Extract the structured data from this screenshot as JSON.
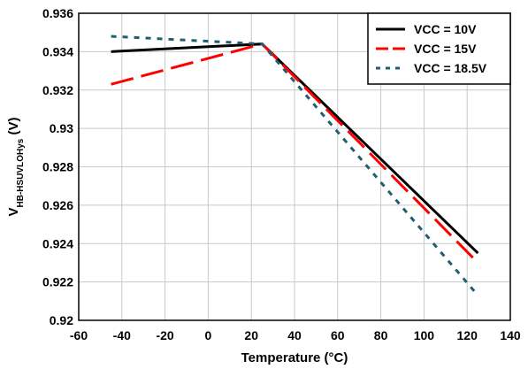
{
  "chart_data": {
    "type": "line",
    "xlabel": "Temperature (°C)",
    "ylabel": {
      "main": "V",
      "sub": "HB-HSUVLOHys",
      "unit": " (V)"
    },
    "xlim": [
      -60,
      140
    ],
    "ylim": [
      0.92,
      0.936
    ],
    "x_ticks": [
      "-60",
      "-40",
      "-20",
      "0",
      "20",
      "40",
      "60",
      "80",
      "100",
      "120",
      "140"
    ],
    "y_ticks": [
      "0.92",
      "0.922",
      "0.924",
      "0.926",
      "0.928",
      "0.93",
      "0.932",
      "0.934",
      "0.936"
    ],
    "grid": true,
    "legend_position": "top-right",
    "series": [
      {
        "name": "VCC = 10V",
        "color": "#000000",
        "style": "solid",
        "x": [
          -45,
          25,
          125
        ],
        "y": [
          0.934,
          0.9344,
          0.9235
        ]
      },
      {
        "name": "VCC = 15V",
        "color": "#ff0000",
        "style": "dashed",
        "x": [
          -45,
          25,
          125
        ],
        "y": [
          0.9323,
          0.9344,
          0.923
        ]
      },
      {
        "name": "VCC = 18.5V",
        "color": "#1f5f6e",
        "style": "dotted",
        "x": [
          -45,
          25,
          125
        ],
        "y": [
          0.9348,
          0.9344,
          0.9213
        ]
      }
    ]
  }
}
